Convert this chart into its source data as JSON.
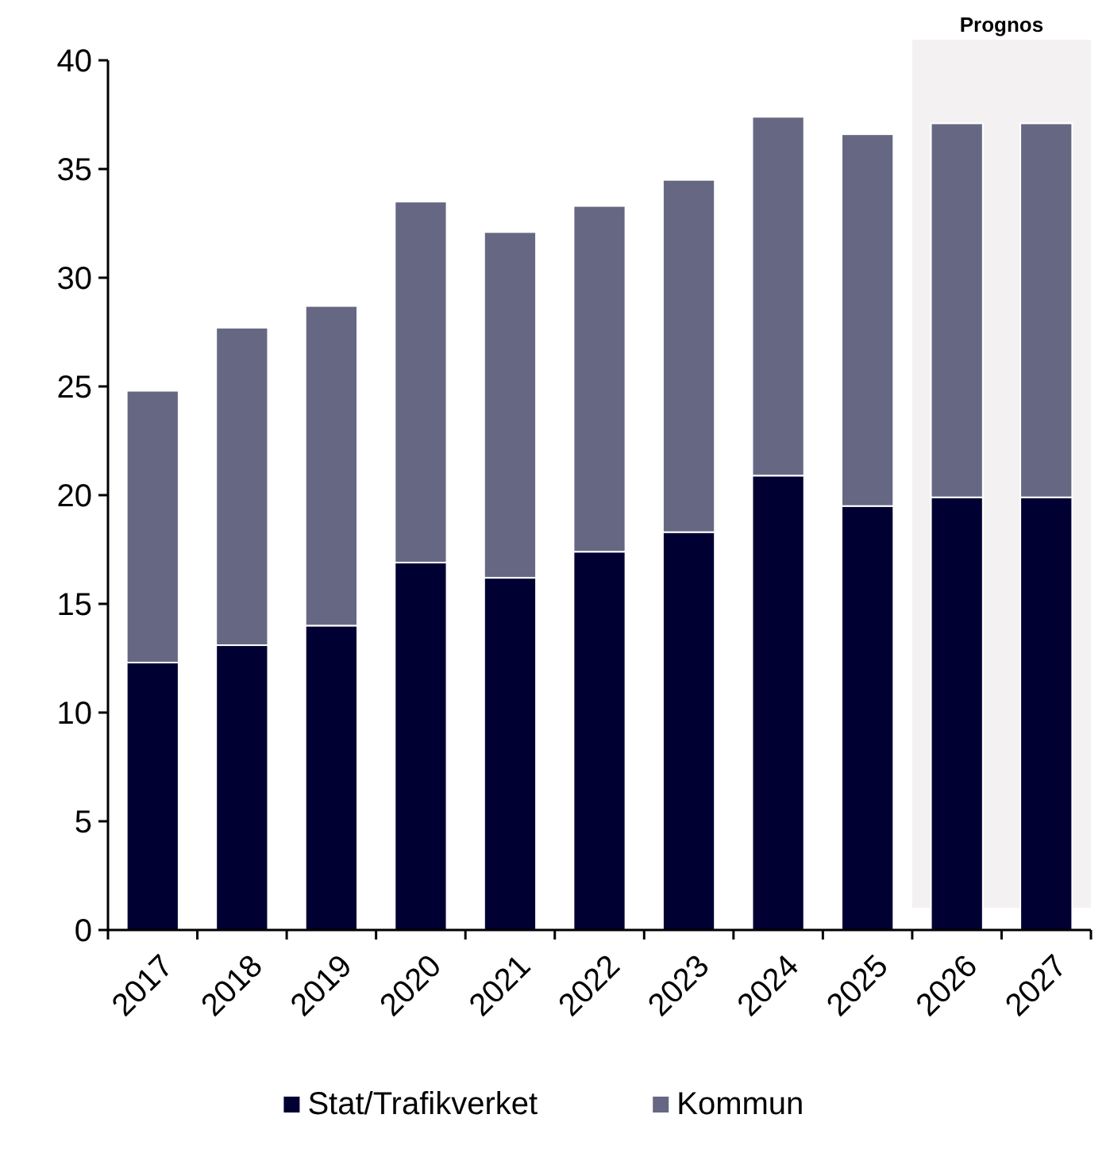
{
  "chart_data": {
    "type": "bar",
    "stacked": true,
    "categories": [
      "2017",
      "2018",
      "2019",
      "2020",
      "2021",
      "2022",
      "2023",
      "2024",
      "2025",
      "2026",
      "2027"
    ],
    "series": [
      {
        "name": "Stat/Trafikverket",
        "color": "#000033",
        "values": [
          12.3,
          13.1,
          14.0,
          16.9,
          16.2,
          17.4,
          18.3,
          20.9,
          19.5,
          19.9,
          19.9
        ]
      },
      {
        "name": "Kommun",
        "color": "#666883",
        "values": [
          12.5,
          14.6,
          14.7,
          16.6,
          15.9,
          15.9,
          16.2,
          16.5,
          17.1,
          17.2,
          17.2
        ]
      }
    ],
    "ylim": [
      0,
      40
    ],
    "yticks": [
      0,
      5,
      10,
      15,
      20,
      25,
      30,
      35,
      40
    ],
    "bands": [
      {
        "axis": "x",
        "from": "2026",
        "to": "2027",
        "label": "Prognos",
        "color": "#f3f1f2"
      }
    ],
    "legend": "bottom"
  }
}
